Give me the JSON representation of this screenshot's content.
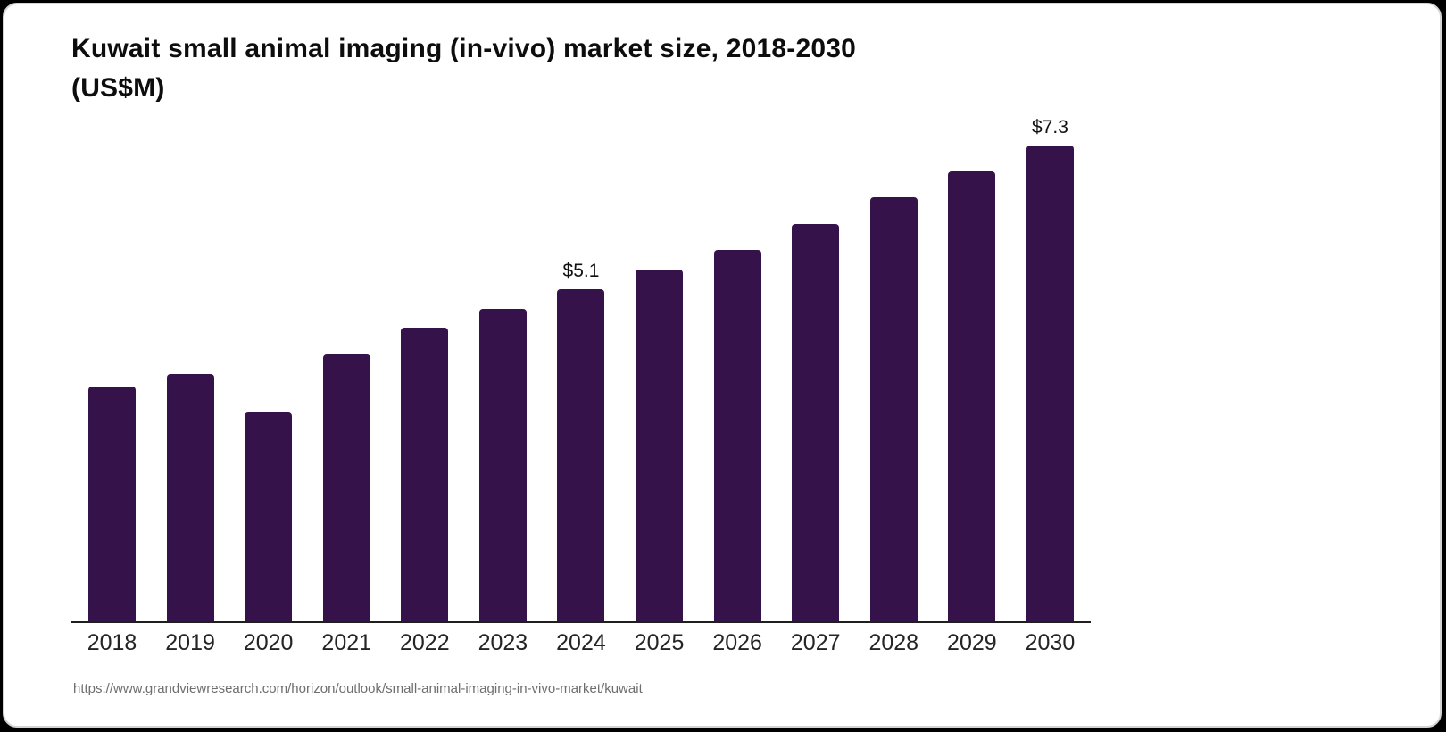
{
  "page": {
    "background_color": "#000000",
    "card_background": "#ffffff",
    "card_border_color": "#d4d4d4"
  },
  "chart_data": {
    "type": "bar",
    "title": "Kuwait small animal imaging (in-vivo) market size, 2018-2030 (US$M)",
    "title_lines": [
      "Kuwait small animal imaging (in-vivo) market size, 2018-2030",
      "(US$M)"
    ],
    "unit": "US$M",
    "categories": [
      "2018",
      "2019",
      "2020",
      "2021",
      "2022",
      "2023",
      "2024",
      "2025",
      "2026",
      "2027",
      "2028",
      "2029",
      "2030"
    ],
    "values": [
      3.6,
      3.8,
      3.2,
      4.1,
      4.5,
      4.8,
      5.1,
      5.4,
      5.7,
      6.1,
      6.5,
      6.9,
      7.3
    ],
    "data_labels": [
      {
        "category": "2024",
        "text": "$5.1"
      },
      {
        "category": "2030",
        "text": "$7.3"
      }
    ],
    "bar_color": "#36124A",
    "axis_color": "#1f1f1f",
    "tick_label_color": "#242424",
    "ylim": [
      0,
      7.5
    ],
    "grid": false,
    "legend_position": "none",
    "y_axis_visible": false
  },
  "source": {
    "url_text": "https://www.grandviewresearch.com/horizon/outlook/small-animal-imaging-in-vivo-market/kuwait"
  }
}
